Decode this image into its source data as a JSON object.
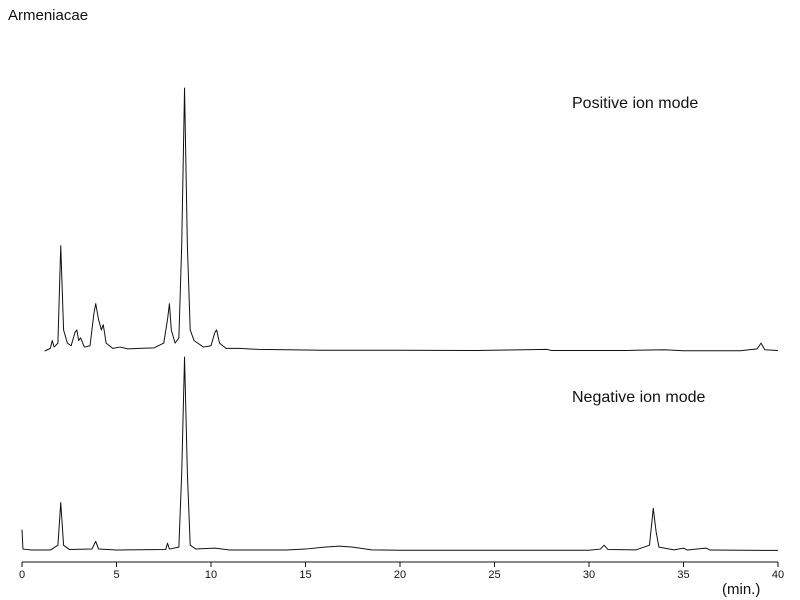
{
  "chart_data": {
    "type": "line",
    "title": "Armeniacae",
    "xlabel": "(min.)",
    "xlim": [
      0,
      40
    ],
    "xticks": [
      0,
      5,
      10,
      15,
      20,
      25,
      30,
      35,
      40
    ],
    "ylim": [
      0,
      100
    ],
    "color": "#111111",
    "series": [
      {
        "name": "Positive ion mode",
        "color": "#111111",
        "x": [
          1.2,
          1.5,
          1.6,
          1.7,
          1.9,
          2.05,
          2.2,
          2.4,
          2.6,
          2.8,
          2.9,
          3.0,
          3.1,
          3.3,
          3.6,
          3.8,
          3.9,
          4.05,
          4.2,
          4.3,
          4.45,
          4.8,
          5.2,
          5.6,
          6.2,
          7.0,
          7.5,
          7.7,
          7.8,
          7.9,
          8.1,
          8.3,
          8.45,
          8.6,
          8.75,
          8.9,
          9.1,
          9.3,
          9.6,
          10.0,
          10.2,
          10.3,
          10.45,
          10.8,
          11.5,
          12.5,
          14,
          16,
          20,
          24,
          27.8,
          28,
          32,
          34,
          35,
          38,
          38.9,
          39.1,
          39.3,
          40
        ],
        "values": [
          0,
          1,
          4,
          1.5,
          3,
          40,
          8,
          3,
          2,
          7,
          8,
          4,
          5,
          1.5,
          2,
          14,
          18,
          12,
          8,
          10,
          3,
          1,
          1.5,
          0.8,
          1,
          1.2,
          3,
          12,
          18,
          8,
          3,
          5,
          40,
          100,
          40,
          8,
          4,
          3,
          1.5,
          2,
          7,
          8,
          3,
          1,
          1,
          0.6,
          0.5,
          0.3,
          0.3,
          0.2,
          0.6,
          0.2,
          0.2,
          0.5,
          0.1,
          0.1,
          0.8,
          3,
          0.5,
          0.2
        ]
      },
      {
        "name": "Negative ion mode",
        "color": "#111111",
        "x": [
          0.0,
          0.05,
          0.5,
          1.5,
          1.9,
          2.05,
          2.2,
          2.5,
          3.7,
          3.9,
          4.05,
          5,
          7.6,
          7.7,
          7.8,
          8.3,
          8.45,
          8.6,
          8.75,
          8.9,
          9.2,
          10.2,
          11,
          14,
          15,
          16,
          16.8,
          17.5,
          18.5,
          20,
          25,
          30,
          30.6,
          30.8,
          31,
          32.5,
          33.2,
          33.4,
          33.55,
          33.7,
          34.5,
          35,
          35.2,
          36.2,
          36.4,
          40
        ],
        "values": [
          11,
          1,
          0.5,
          0.5,
          3,
          25,
          3,
          0.8,
          1,
          5,
          1,
          0.5,
          0.8,
          4,
          1,
          2,
          40,
          100,
          40,
          3,
          1,
          1.5,
          0.5,
          0.5,
          1,
          2,
          2.5,
          2,
          0.6,
          0.4,
          0.4,
          0.4,
          1,
          3,
          0.8,
          0.6,
          3,
          22,
          10,
          2,
          0.6,
          1.5,
          0.5,
          1.5,
          0.5,
          0.3
        ]
      }
    ]
  }
}
